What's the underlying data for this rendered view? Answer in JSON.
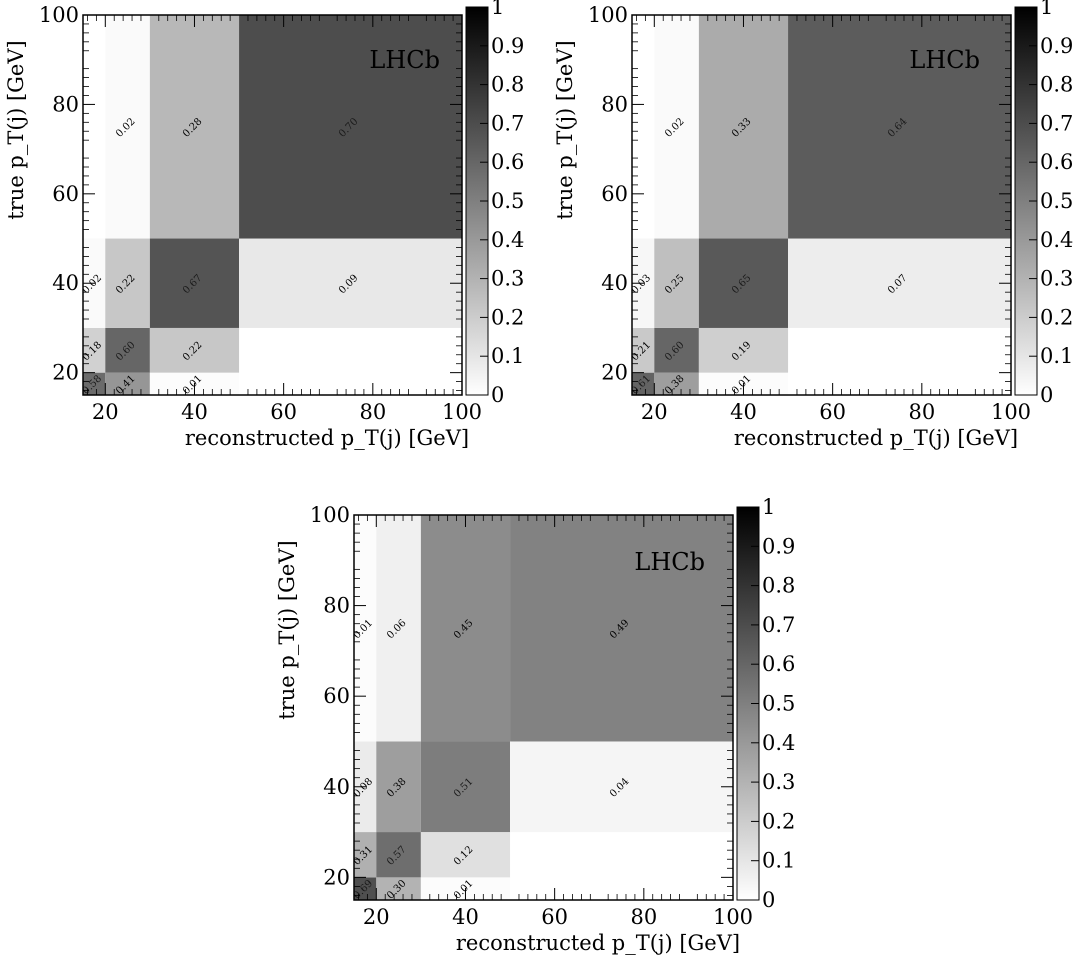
{
  "axes": {
    "xlabel": "reconstructed p_T(j) [GeV]",
    "ylabel": "true p_T(j) [GeV]",
    "x_ticks": [
      "20",
      "40",
      "60",
      "80",
      "100"
    ],
    "y_ticks": [
      "20",
      "40",
      "60",
      "80",
      "100"
    ],
    "colorbar_ticks": [
      "0",
      "0.1",
      "0.2",
      "0.3",
      "0.4",
      "0.5",
      "0.6",
      "0.7",
      "0.8",
      "0.9",
      "1"
    ],
    "experiment": "LHCb"
  },
  "chart_data": [
    {
      "type": "heatmap",
      "xlabel": "reconstructed p_T(j) [GeV]",
      "ylabel": "true p_T(j) [GeV]",
      "xlim": [
        15,
        100
      ],
      "ylim": [
        15,
        100
      ],
      "x_bin_edges": [
        15,
        20,
        30,
        50,
        100
      ],
      "y_bin_edges": [
        15,
        20,
        30,
        50,
        100
      ],
      "colorbar_range": [
        0,
        1
      ],
      "label": "LHCb",
      "cells": [
        {
          "x": [
            15,
            20
          ],
          "y": [
            15,
            20
          ],
          "value": 0.58,
          "text": "0.58"
        },
        {
          "x": [
            20,
            30
          ],
          "y": [
            15,
            20
          ],
          "value": 0.41,
          "text": "0.41"
        },
        {
          "x": [
            30,
            50
          ],
          "y": [
            15,
            20
          ],
          "value": 0.01,
          "text": "0.01"
        },
        {
          "x": [
            15,
            20
          ],
          "y": [
            20,
            30
          ],
          "value": 0.18,
          "text": "0.18"
        },
        {
          "x": [
            20,
            30
          ],
          "y": [
            20,
            30
          ],
          "value": 0.6,
          "text": "0.60"
        },
        {
          "x": [
            30,
            50
          ],
          "y": [
            20,
            30
          ],
          "value": 0.22,
          "text": "0.22"
        },
        {
          "x": [
            15,
            20
          ],
          "y": [
            30,
            50
          ],
          "value": 0.02,
          "text": "0.02"
        },
        {
          "x": [
            20,
            30
          ],
          "y": [
            30,
            50
          ],
          "value": 0.22,
          "text": "0.22"
        },
        {
          "x": [
            30,
            50
          ],
          "y": [
            30,
            50
          ],
          "value": 0.67,
          "text": "0.67"
        },
        {
          "x": [
            50,
            100
          ],
          "y": [
            30,
            50
          ],
          "value": 0.09,
          "text": "0.09"
        },
        {
          "x": [
            20,
            30
          ],
          "y": [
            50,
            100
          ],
          "value": 0.02,
          "text": "0.02"
        },
        {
          "x": [
            30,
            50
          ],
          "y": [
            50,
            100
          ],
          "value": 0.28,
          "text": "0.28"
        },
        {
          "x": [
            50,
            100
          ],
          "y": [
            50,
            100
          ],
          "value": 0.7,
          "text": "0.70"
        }
      ]
    },
    {
      "type": "heatmap",
      "xlabel": "reconstructed p_T(j) [GeV]",
      "ylabel": "true p_T(j) [GeV]",
      "xlim": [
        15,
        100
      ],
      "ylim": [
        15,
        100
      ],
      "x_bin_edges": [
        15,
        20,
        30,
        50,
        100
      ],
      "y_bin_edges": [
        15,
        20,
        30,
        50,
        100
      ],
      "colorbar_range": [
        0,
        1
      ],
      "label": "LHCb",
      "cells": [
        {
          "x": [
            15,
            20
          ],
          "y": [
            15,
            20
          ],
          "value": 0.61,
          "text": "0.61"
        },
        {
          "x": [
            20,
            30
          ],
          "y": [
            15,
            20
          ],
          "value": 0.38,
          "text": "0.38"
        },
        {
          "x": [
            30,
            50
          ],
          "y": [
            15,
            20
          ],
          "value": 0.01,
          "text": "0.01"
        },
        {
          "x": [
            15,
            20
          ],
          "y": [
            20,
            30
          ],
          "value": 0.21,
          "text": "0.21"
        },
        {
          "x": [
            20,
            30
          ],
          "y": [
            20,
            30
          ],
          "value": 0.6,
          "text": "0.60"
        },
        {
          "x": [
            30,
            50
          ],
          "y": [
            20,
            30
          ],
          "value": 0.19,
          "text": "0.19"
        },
        {
          "x": [
            15,
            20
          ],
          "y": [
            30,
            50
          ],
          "value": 0.03,
          "text": "0.03"
        },
        {
          "x": [
            20,
            30
          ],
          "y": [
            30,
            50
          ],
          "value": 0.25,
          "text": "0.25"
        },
        {
          "x": [
            30,
            50
          ],
          "y": [
            30,
            50
          ],
          "value": 0.65,
          "text": "0.65"
        },
        {
          "x": [
            50,
            100
          ],
          "y": [
            30,
            50
          ],
          "value": 0.07,
          "text": "0.07"
        },
        {
          "x": [
            20,
            30
          ],
          "y": [
            50,
            100
          ],
          "value": 0.02,
          "text": "0.02"
        },
        {
          "x": [
            30,
            50
          ],
          "y": [
            50,
            100
          ],
          "value": 0.33,
          "text": "0.33"
        },
        {
          "x": [
            50,
            100
          ],
          "y": [
            50,
            100
          ],
          "value": 0.64,
          "text": "0.64"
        }
      ]
    },
    {
      "type": "heatmap",
      "xlabel": "reconstructed p_T(j) [GeV]",
      "ylabel": "true p_T(j) [GeV]",
      "xlim": [
        15,
        100
      ],
      "ylim": [
        15,
        100
      ],
      "x_bin_edges": [
        15,
        20,
        30,
        50,
        100
      ],
      "y_bin_edges": [
        15,
        20,
        30,
        50,
        100
      ],
      "colorbar_range": [
        0,
        1
      ],
      "label": "LHCb",
      "cells": [
        {
          "x": [
            15,
            20
          ],
          "y": [
            15,
            20
          ],
          "value": 0.69,
          "text": "0.69"
        },
        {
          "x": [
            20,
            30
          ],
          "y": [
            15,
            20
          ],
          "value": 0.3,
          "text": "0.30"
        },
        {
          "x": [
            30,
            50
          ],
          "y": [
            15,
            20
          ],
          "value": 0.01,
          "text": "0.01"
        },
        {
          "x": [
            15,
            20
          ],
          "y": [
            20,
            30
          ],
          "value": 0.31,
          "text": "0.31"
        },
        {
          "x": [
            20,
            30
          ],
          "y": [
            20,
            30
          ],
          "value": 0.57,
          "text": "0.57"
        },
        {
          "x": [
            30,
            50
          ],
          "y": [
            20,
            30
          ],
          "value": 0.12,
          "text": "0.12"
        },
        {
          "x": [
            15,
            20
          ],
          "y": [
            30,
            50
          ],
          "value": 0.08,
          "text": "0.08"
        },
        {
          "x": [
            20,
            30
          ],
          "y": [
            30,
            50
          ],
          "value": 0.38,
          "text": "0.38"
        },
        {
          "x": [
            30,
            50
          ],
          "y": [
            30,
            50
          ],
          "value": 0.51,
          "text": "0.51"
        },
        {
          "x": [
            50,
            100
          ],
          "y": [
            30,
            50
          ],
          "value": 0.04,
          "text": "0.04"
        },
        {
          "x": [
            15,
            20
          ],
          "y": [
            50,
            100
          ],
          "value": 0.01,
          "text": "0.01"
        },
        {
          "x": [
            20,
            30
          ],
          "y": [
            50,
            100
          ],
          "value": 0.06,
          "text": "0.06"
        },
        {
          "x": [
            30,
            50
          ],
          "y": [
            50,
            100
          ],
          "value": 0.45,
          "text": "0.45"
        },
        {
          "x": [
            50,
            100
          ],
          "y": [
            50,
            100
          ],
          "value": 0.49,
          "text": "0.49"
        }
      ]
    }
  ]
}
